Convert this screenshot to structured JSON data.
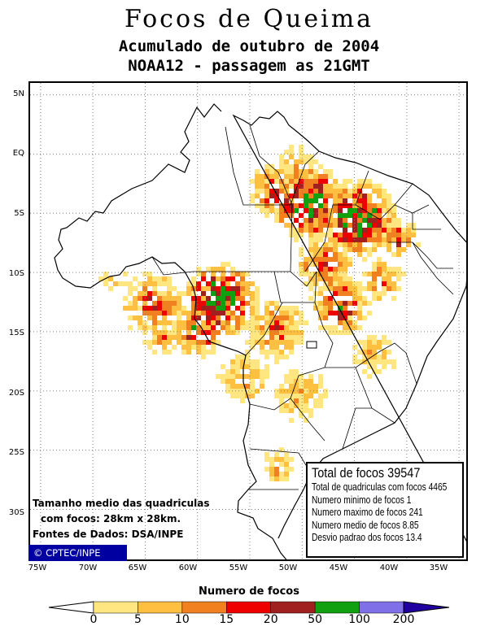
{
  "header": {
    "title": "Focos de Queima",
    "subtitle": "Acumulado de outubro de 2004",
    "satellite": "NOAA12 - passagem as 21GMT"
  },
  "axes": {
    "lat_labels": [
      "5N",
      "EQ",
      "5S",
      "10S",
      "15S",
      "20S",
      "25S",
      "30S"
    ],
    "lon_labels": [
      "75W",
      "70W",
      "65W",
      "60W",
      "55W",
      "50W",
      "45W",
      "40W",
      "35W"
    ],
    "lat_values": [
      5,
      0,
      -5,
      -10,
      -15,
      -20,
      -25,
      -30
    ],
    "lon_values": [
      -75,
      -70,
      -65,
      -60,
      -55,
      -50,
      -45,
      -40,
      -35
    ],
    "lat_range": [
      -34.5,
      6
    ],
    "lon_range": [
      -76,
      -34
    ]
  },
  "statistics": {
    "total": "Total de focos 39547",
    "cells": "Total de quadriculas com focos 4465",
    "min": "Numero minimo de focos 1",
    "max": "Numero maximo de focos 241",
    "mean": "Numero medio de focos 8.85",
    "std": "Desvio padrao dos focos 13.4"
  },
  "grid_note": {
    "line1": "Tamanho medio das quadriculas",
    "line2": "com focos: 28km x 28km.",
    "source": "Fontes de Dados: DSA/INPE"
  },
  "copyright": "© CPTEC/INPE",
  "legend": {
    "title": "Numero de focos",
    "bins": [
      0,
      5,
      10,
      15,
      20,
      50,
      100,
      200
    ],
    "colors": [
      "#ffe680",
      "#ffbf40",
      "#f08020",
      "#ee0000",
      "#a02020",
      "#10a010",
      "#8070e8",
      "#2000a0"
    ],
    "tick_labels": [
      "0",
      "5",
      "10",
      "15",
      "20",
      "50",
      "100",
      "200"
    ]
  },
  "colors": {
    "border": "#000000",
    "gridline": "#808080",
    "copyright_bg": "#0000a0"
  }
}
